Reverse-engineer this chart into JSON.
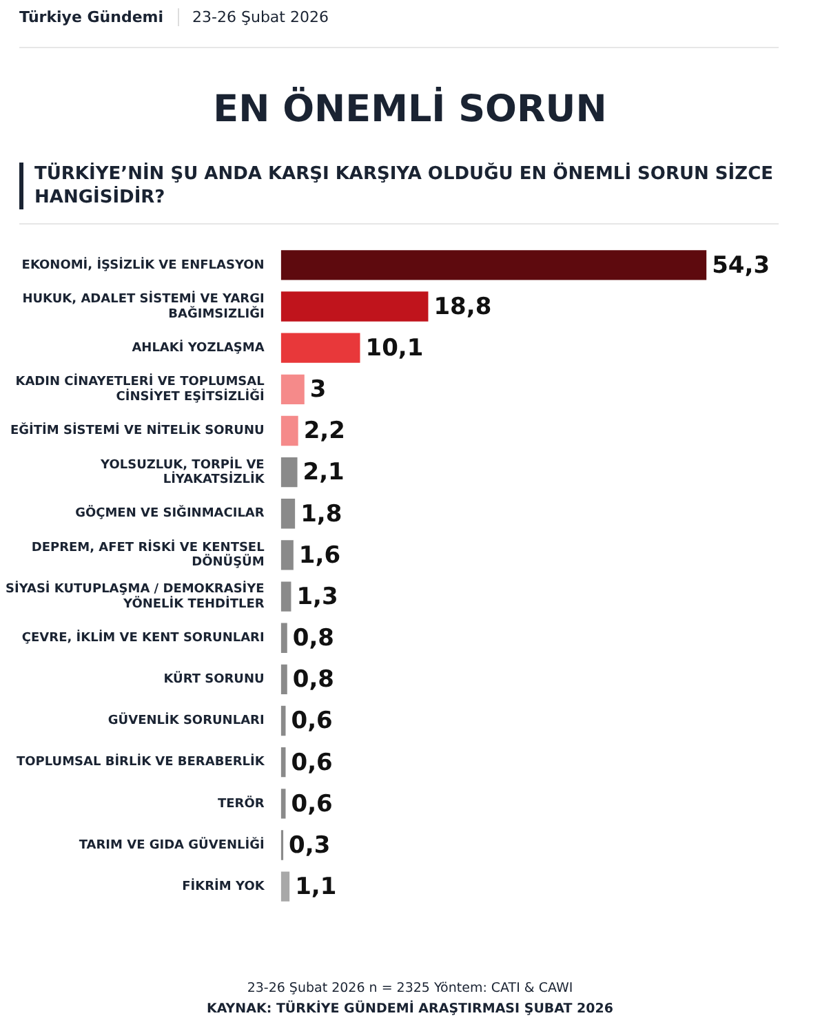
{
  "chart_data": {
    "type": "bar",
    "orientation": "horizontal",
    "title": "EN ÖNEMLİ SORUN",
    "subtitle": "TÜRKİYE’NİN ŞU ANDA KARŞI KARŞIYA OLDUĞU EN ÖNEMLİ SORUN SİZCE HANGİSİDİR?",
    "annotations": [
      "Türkiye Gündemi",
      "23-26 Şubat 2026",
      "23-26 Şubat 2026 n = 2325 Yöntem: CATI & CAWI",
      "KAYNAK: TÜRKİYE GÜNDEMİ ARAŞTIRMASI ŞUBAT 2026"
    ],
    "categories": [
      "EKONOMİ, İŞSİZLİK VE ENFLASYON",
      "HUKUK, ADALET SİSTEMİ VE YARGI BAĞIMSIZLIĞI",
      "AHLAKİ YOZLAŞMA",
      "KADIN CİNAYETLERİ VE TOPLUMSAL CİNSİYET EŞİTSİZLİĞİ",
      "EĞİTİM SİSTEMİ VE NİTELİK SORUNU",
      "YOLSUZLUK, TORPİL VE LİYAKATSİZLİK",
      "GÖÇMEN VE SIĞINMACILAR",
      "DEPREM, AFET RİSKİ VE KENTSEL DÖNÜŞÜM",
      "SİYASİ KUTUPLAŞMA / DEMOKRASİYE YÖNELİK TEHDİTLER",
      "ÇEVRE, İKLİM VE KENT SORUNLARI",
      "KÜRT SORUNU",
      "GÜVENLİK SORUNLARI",
      "TOPLUMSAL BİRLİK VE BERABERLİK",
      "TERÖR",
      "TARIM VE GIDA GÜVENLİĞİ",
      "FİKRİM YOK"
    ],
    "values": [
      54.3,
      18.8,
      10.1,
      3,
      2.2,
      2.1,
      1.8,
      1.6,
      1.3,
      0.8,
      0.8,
      0.6,
      0.6,
      0.6,
      0.3,
      1.1
    ],
    "value_labels": [
      "54,3",
      "18,8",
      "10,1",
      "3",
      "2,2",
      "2,1",
      "1,8",
      "1,6",
      "1,3",
      "0,8",
      "0,8",
      "0,6",
      "0,6",
      "0,6",
      "0,3",
      "1,1"
    ],
    "colors": [
      "#5e0a0e",
      "#c0141c",
      "#e8383a",
      "#f58a8a",
      "#f58a8a",
      "#8a8a8a",
      "#8a8a8a",
      "#8a8a8a",
      "#8a8a8a",
      "#8a8a8a",
      "#8a8a8a",
      "#8a8a8a",
      "#8a8a8a",
      "#8a8a8a",
      "#8a8a8a",
      "#a8a8a8"
    ],
    "legend": false
  }
}
